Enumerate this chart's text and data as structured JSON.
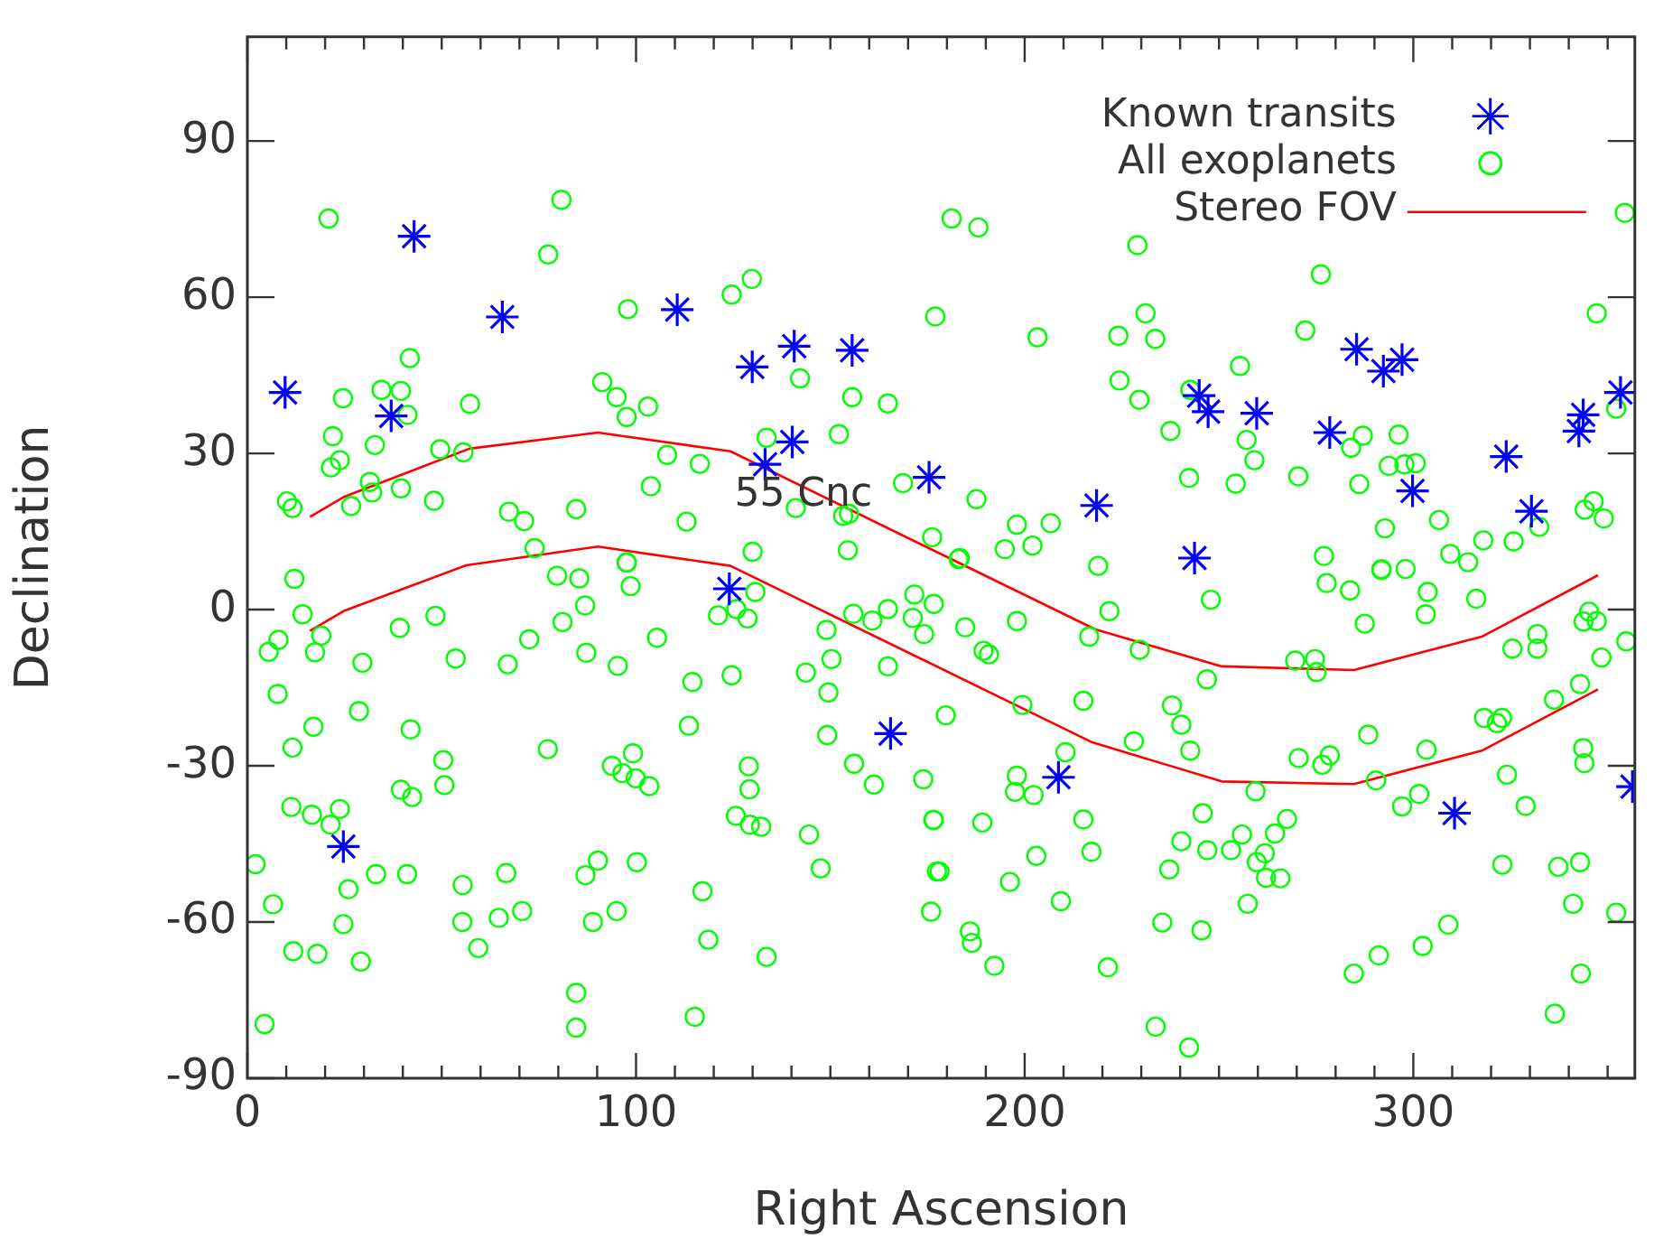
{
  "chart_data": {
    "type": "scatter",
    "xlabel": "Right Ascension",
    "ylabel": "Declination",
    "xlim": [
      0,
      357
    ],
    "ylim": [
      -90,
      110
    ],
    "xticks": [
      0,
      {
        "value": 10,
        "label": null
      },
      {
        "value": 20,
        "label": null
      },
      {
        "value": 30,
        "label": null
      },
      {
        "value": 40,
        "label": null
      },
      {
        "value": 50,
        "label": null
      },
      {
        "value": 60,
        "label": null
      },
      {
        "value": 70,
        "label": null
      },
      {
        "value": 80,
        "label": null
      },
      {
        "value": 90,
        "label": null
      },
      100,
      {
        "value": 110,
        "label": null
      },
      {
        "value": 120,
        "label": null
      },
      {
        "value": 130,
        "label": null
      },
      {
        "value": 140,
        "label": null
      },
      {
        "value": 150,
        "label": null
      },
      {
        "value": 160,
        "label": null
      },
      {
        "value": 170,
        "label": null
      },
      {
        "value": 180,
        "label": null
      },
      {
        "value": 190,
        "label": null
      },
      200,
      {
        "value": 210,
        "label": null
      },
      {
        "value": 220,
        "label": null
      },
      {
        "value": 230,
        "label": null
      },
      {
        "value": 240,
        "label": null
      },
      {
        "value": 250,
        "label": null
      },
      {
        "value": 260,
        "label": null
      },
      {
        "value": 270,
        "label": null
      },
      {
        "value": 280,
        "label": null
      },
      {
        "value": 290,
        "label": null
      },
      300,
      {
        "value": 310,
        "label": null
      },
      {
        "value": 320,
        "label": null
      },
      {
        "value": 330,
        "label": null
      },
      {
        "value": 340,
        "label": null
      },
      {
        "value": 350,
        "label": null
      }
    ],
    "yticks": [
      -90,
      -60,
      -30,
      0,
      30,
      60,
      90
    ],
    "legend": "top right",
    "annotations": [
      {
        "text": "55 Cnc",
        "x": 133.2,
        "y": 27.9
      }
    ],
    "series": [
      {
        "name": "Known transits",
        "color": "#0000ff",
        "marker": "cross",
        "x": [
          9.7,
          42.9,
          37.0,
          65.6,
          110.6,
          129.9,
          140.7,
          155.6,
          140.2,
          133.2,
          175.4,
          218.5,
          243.7,
          244.9,
          247.2,
          259.7,
          278.5,
          285.4,
          292.3,
          297.1,
          299.8,
          323.9,
          330.4,
          342.6,
          343.7,
          353.3,
          124.0,
          24.7,
          165.5,
          208.7,
          310.6,
          356.4
        ],
        "values": [
          41.7,
          71.7,
          37.2,
          56.2,
          57.6,
          46.6,
          50.6,
          49.8,
          32.2,
          27.9,
          25.4,
          20.0,
          9.9,
          41.1,
          38.0,
          37.7,
          34.0,
          50.0,
          45.8,
          48.0,
          22.8,
          29.4,
          18.9,
          34.3,
          37.4,
          41.7,
          4.0,
          -45.5,
          -23.8,
          -32.2,
          -39.1,
          -34
        ]
      },
      {
        "name": "All exoplanets",
        "color": "#00ff00",
        "marker": "circle",
        "x": [
          20.9,
          80.8,
          77.4,
          129.8,
          124.6,
          97.9,
          177.0,
          41.8,
          34.5,
          39.5,
          24.6,
          91.3,
          95.0,
          97.6,
          103.1,
          142.2,
          155.6,
          164.8,
          57.3,
          22.0,
          32.8,
          23.8,
          21.5,
          41.2,
          49.6,
          55.6,
          108.0,
          116.4,
          152.2,
          133.6,
          31.5,
          32.1,
          39.5,
          10.2,
          11.6,
          26.7,
          48.0,
          67.3,
          71.2,
          84.6,
          103.8,
          113.0,
          141.1,
          153.3,
          154.8,
          168.7,
          73.9,
          97.6,
          130.0,
          154.5,
          176.2,
          181.2,
          188.1,
          229.0,
          276.2,
          354.4,
          203.3,
          224.1,
          231.1,
          233.6,
          272.2,
          347.2,
          255.4,
          224.4,
          229.5,
          237.5,
          257.1,
          259.1,
          242.6,
          287.0,
          284.0,
          296.2,
          293.7,
          297.7,
          300.6,
          286.1,
          352.2,
          270.4,
          242.3,
          254.3,
          187.6,
          198.0,
          206.7,
          194.9,
          202.0,
          183.3,
          218.9,
          277.0,
          292.7,
          306.6,
          309.5,
          314.1,
          318.0,
          325.8,
          344.1,
          346.4,
          349.0,
          332.4,
          291.8,
          298.0,
          12.1,
          14.2,
          19.0,
          5.5,
          8.0,
          17.4,
          29.6,
          39.2,
          48.4,
          53.6,
          67.0,
          72.5,
          79.7,
          85.4,
          86.9,
          81.1,
          87.2,
          95.3,
          97.6,
          98.6,
          105.4,
          114.5,
          124.6,
          121.1,
          125.8,
          128.7,
          130.7,
          143.7,
          150.3,
          149.5,
          149.0,
          155.9,
          160.8,
          164.8,
          171.6,
          171.2,
          174.1,
          164.8,
          7.8,
          11.6,
          17.0,
          28.7,
          42.0,
          50.4,
          50.7,
          39.5,
          42.4,
          11.3,
          16.6,
          23.8,
          21.4,
          2.1,
          6.6,
          26.0,
          33.1,
          41.1,
          55.4,
          66.6,
          77.3,
          93.8,
          96.5,
          99.2,
          99.9,
          103.4,
          90.2,
          87.0,
          100.2,
          113.6,
          129.0,
          129.2,
          125.7,
          129.3,
          132.2,
          144.5,
          147.5,
          149.2,
          156.1,
          161.2,
          173.9,
          176.5,
          177.4,
          175.9,
          11.8,
          18.0,
          29.2,
          24.7,
          55.3,
          59.4,
          64.7,
          70.7,
          88.9,
          95.0,
          117.1,
          118.6,
          133.6,
          84.6,
          84.6,
          115.1,
          4.4,
          183.0,
          247.9,
          277.7,
          283.7,
          291.8,
          303.7,
          303.2,
          316.2,
          287.5,
          176.6,
          184.7,
          198.0,
          221.8,
          216.6,
          189.4,
          190.8,
          229.6,
          246.9,
          269.6,
          274.7,
          275.1,
          325.5,
          331.9,
          331.9,
          345.2,
          343.8,
          347.2,
          348.4,
          354.8,
          342.9,
          336.2,
          322.8,
          318.2,
          321.5,
          179.7,
          199.4,
          215.1,
          237.9,
          240.3,
          228.1,
          242.6,
          270.5,
          276.6,
          278.5,
          288.4,
          290.4,
          303.4,
          324.1,
          343.7,
          344.0,
          328.9,
          301.5,
          297.1,
          259.4,
          267.5,
          264.4,
          255.9,
          253.1,
          261.8,
          259.7,
          262.1,
          265.8,
          247.0,
          245.8,
          240.3,
          237.2,
          257.4,
          235.4,
          245.5,
          198.0,
          197.5,
          202.3,
          210.5,
          176.6,
          189.1,
          215.1,
          217.2,
          203.0,
          178.1,
          196.2,
          209.3,
          185.9,
          186.4,
          192.2,
          221.4,
          233.7,
          242.3,
          284.7,
          291.1,
          302.4,
          309.0,
          322.9,
          337.3,
          342.9,
          341.1,
          343.1,
          336.4,
          352.2
        ],
        "values": [
          75.1,
          78.7,
          68.2,
          63.5,
          60.5,
          57.7,
          56.3,
          48.3,
          42.2,
          42.0,
          40.6,
          43.7,
          40.8,
          37.0,
          39.0,
          44.4,
          40.8,
          39.6,
          39.5,
          33.3,
          31.6,
          28.7,
          27.3,
          37.4,
          30.8,
          30.2,
          29.7,
          28.0,
          33.7,
          33.0,
          24.5,
          22.5,
          23.3,
          20.8,
          19.5,
          19.9,
          20.9,
          18.8,
          17.0,
          19.3,
          23.7,
          16.9,
          19.5,
          18.0,
          18.4,
          24.3,
          11.8,
          9.1,
          11.1,
          11.4,
          13.9,
          75.1,
          73.4,
          70.0,
          64.4,
          76.2,
          52.3,
          52.6,
          56.9,
          52.0,
          53.6,
          56.9,
          46.8,
          44.0,
          40.3,
          34.3,
          32.6,
          28.7,
          42.2,
          33.4,
          31.1,
          33.6,
          27.6,
          27.9,
          28.1,
          24.1,
          38.6,
          25.6,
          25.3,
          24.2,
          21.2,
          16.3,
          16.6,
          11.6,
          12.3,
          9.9,
          8.4,
          10.3,
          15.6,
          17.2,
          10.7,
          9.1,
          13.3,
          13.1,
          19.2,
          20.8,
          17.5,
          15.9,
          7.8,
          7.8,
          5.9,
          -0.9,
          -5.0,
          -8.1,
          -5.8,
          -8.2,
          -10.2,
          -3.5,
          -1.2,
          -9.4,
          -10.5,
          -5.7,
          6.5,
          6.0,
          0.8,
          -2.4,
          -8.3,
          -10.8,
          9.0,
          4.5,
          -5.4,
          -13.9,
          -12.6,
          -1.1,
          0.1,
          -1.7,
          3.4,
          -12.1,
          -9.5,
          -15.9,
          -3.9,
          -0.8,
          -2.1,
          0.1,
          2.9,
          -1.6,
          -4.7,
          -10.9,
          -16.2,
          -26.5,
          -22.5,
          -19.5,
          -23.0,
          -28.9,
          -33.7,
          -34.6,
          -36.0,
          -37.9,
          -39.4,
          -38.3,
          -41.3,
          -48.9,
          -56.6,
          -53.7,
          -50.8,
          -50.8,
          -52.9,
          -50.6,
          -26.8,
          -30.0,
          -31.4,
          -27.6,
          -32.4,
          -33.9,
          -48.2,
          -51.0,
          -48.5,
          -22.3,
          -30.1,
          -34.5,
          -39.6,
          -41.3,
          -41.7,
          -43.2,
          -49.7,
          -24.1,
          -29.6,
          -33.6,
          -32.6,
          -40.4,
          -50.3,
          -58.0,
          -65.6,
          -66.1,
          -67.6,
          -60.4,
          -60.0,
          -65.0,
          -59.2,
          -57.9,
          -60.0,
          -57.9,
          -54.1,
          -63.4,
          -66.7,
          -73.6,
          -80.3,
          -78.2,
          -79.6,
          9.7,
          1.9,
          5.1,
          3.7,
          7.6,
          3.4,
          -0.9,
          2.1,
          -2.7,
          1.1,
          -3.4,
          -2.2,
          -0.3,
          -5.2,
          -7.9,
          -8.6,
          -7.7,
          -13.4,
          -9.8,
          -9.5,
          -12.0,
          -7.5,
          -4.7,
          -7.5,
          -0.4,
          -2.3,
          -2.2,
          -9.2,
          -6.1,
          -14.3,
          -17.3,
          -20.8,
          -20.8,
          -21.8,
          -20.3,
          -18.3,
          -17.5,
          -18.4,
          -22.1,
          -25.3,
          -27.1,
          -28.5,
          -29.8,
          -28.0,
          -24.0,
          -32.8,
          -26.9,
          -31.7,
          -26.6,
          -29.5,
          -37.7,
          -35.4,
          -37.8,
          -34.9,
          -40.2,
          -43.0,
          -43.2,
          -46.2,
          -46.8,
          -48.5,
          -51.5,
          -51.6,
          -46.2,
          -39.1,
          -44.5,
          -49.9,
          -56.5,
          -60.1,
          -61.6,
          -31.9,
          -35.0,
          -35.6,
          -27.4,
          -40.4,
          -40.9,
          -40.3,
          -46.5,
          -47.3,
          -50.3,
          -52.3,
          -56.0,
          -61.8,
          -64.0,
          -68.4,
          -68.7,
          -80.1,
          -84.1,
          -69.9,
          -66.4,
          -64.6,
          -60.5,
          -49.0,
          -49.4,
          -48.5,
          -56.5,
          -69.9,
          -77.6,
          -58.2
        ]
      },
      {
        "name": "Stereo FOV",
        "type": "line",
        "color": "#ff0000",
        "marker": "none",
        "x": [
          16.1,
          25.0,
          57.1,
          90.2,
          124.3,
          218.2,
          250.7,
          284.7,
          317.6,
          347.5
        ],
        "values": [
          17.8,
          21.7,
          30.9,
          34.0,
          30.4,
          -3.8,
          -10.9,
          -11.6,
          -5.2,
          6.6
        ]
      },
      {
        "type": "line",
        "color": "#ff0000",
        "marker": "none",
        "x": [
          16.1,
          25.0,
          56.3,
          90.2,
          124.3,
          217.4,
          250.7,
          284.7,
          317.6,
          347.5
        ],
        "values": [
          -4.1,
          -0.2,
          8.5,
          12.1,
          8.4,
          -25.5,
          -33.0,
          -33.5,
          -27.1,
          -15.3
        ]
      }
    ]
  }
}
